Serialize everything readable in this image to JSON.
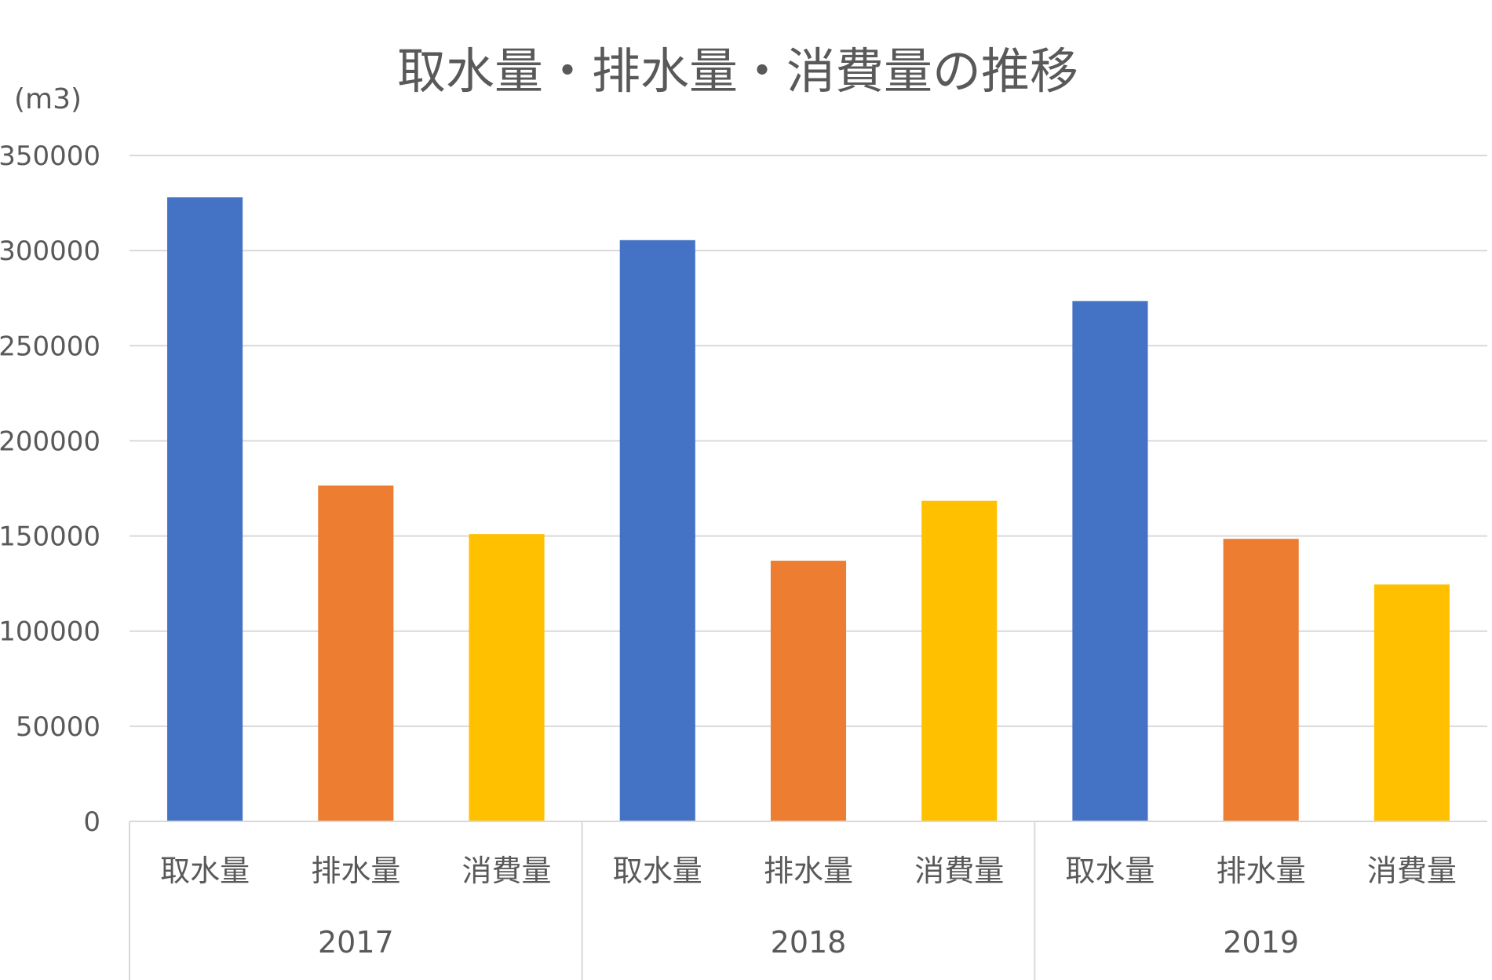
{
  "chart_data": {
    "type": "bar",
    "title": "取水量・排水量・消費量の推移",
    "unit_label": "(m3)",
    "ylim": [
      0,
      350000
    ],
    "yticks": [
      0,
      50000,
      100000,
      150000,
      200000,
      250000,
      300000,
      350000
    ],
    "grid": true,
    "groups": [
      {
        "year": "2017",
        "bars": [
          {
            "label": "取水量",
            "value": 328000,
            "color": "#4472C4"
          },
          {
            "label": "排水量",
            "value": 176500,
            "color": "#ED7D31"
          },
          {
            "label": "消費量",
            "value": 151000,
            "color": "#FFC000"
          }
        ]
      },
      {
        "year": "2018",
        "bars": [
          {
            "label": "取水量",
            "value": 305500,
            "color": "#4472C4"
          },
          {
            "label": "排水量",
            "value": 137000,
            "color": "#ED7D31"
          },
          {
            "label": "消費量",
            "value": 168500,
            "color": "#FFC000"
          }
        ]
      },
      {
        "year": "2019",
        "bars": [
          {
            "label": "取水量",
            "value": 273500,
            "color": "#4472C4"
          },
          {
            "label": "排水量",
            "value": 148500,
            "color": "#ED7D31"
          },
          {
            "label": "消費量",
            "value": 124500,
            "color": "#FFC000"
          }
        ]
      }
    ]
  }
}
